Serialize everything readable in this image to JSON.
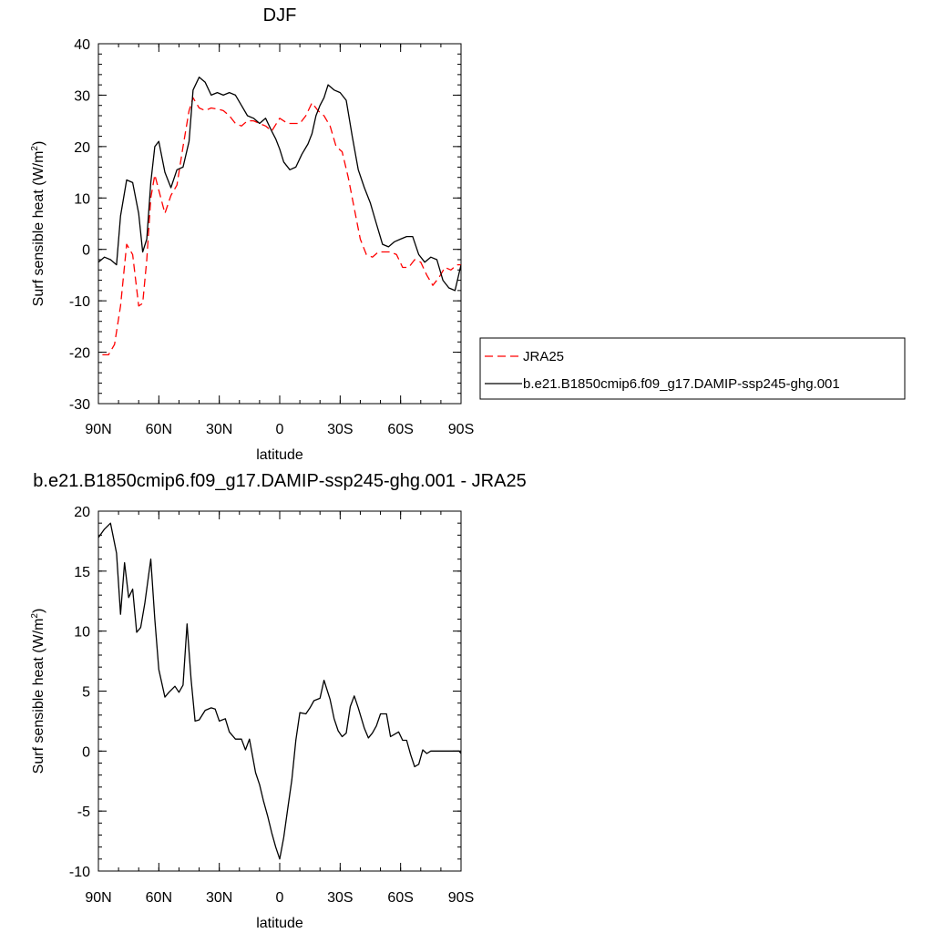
{
  "chart_data": [
    {
      "type": "line",
      "title": "DJF",
      "xlabel": "latitude",
      "ylabel": "Surf sensible heat (W/m",
      "ylabel_sup": "2",
      "ylabel_end": ")",
      "xlim": [
        -90,
        90
      ],
      "ylim": [
        -30,
        40
      ],
      "xticks": [
        -90,
        -60,
        -30,
        0,
        30,
        60,
        90
      ],
      "xtick_labels": [
        "90N",
        "60N",
        "30N",
        "0",
        "30S",
        "60S",
        "90S"
      ],
      "yticks": [
        -30,
        -20,
        -10,
        0,
        10,
        20,
        30,
        40
      ],
      "ytick_labels": [
        "-30",
        "-20",
        "-10",
        "0",
        "10",
        "20",
        "30",
        "40"
      ],
      "legend_position": "right",
      "series": [
        {
          "name": "JRA25",
          "color": "#ff0000",
          "dash": "dashed",
          "x": [
            -88,
            -85,
            -82,
            -79,
            -76,
            -73,
            -70,
            -68,
            -66,
            -64,
            -62,
            -60,
            -57,
            -54,
            -51,
            -48,
            -45,
            -43,
            -40,
            -37,
            -34,
            -31,
            -28,
            -25,
            -22,
            -19,
            -16,
            -13,
            -10,
            -7,
            -4,
            0,
            4,
            7,
            10,
            13,
            16,
            19,
            22,
            25,
            28,
            31,
            34,
            37,
            40,
            43,
            46,
            49,
            52,
            55,
            58,
            61,
            64,
            67,
            70,
            73,
            76,
            79,
            82,
            85,
            88,
            90
          ],
          "y": [
            -20.5,
            -20.5,
            -18.5,
            -11,
            1,
            -1,
            -11,
            -10.5,
            -2,
            10,
            14.5,
            11.5,
            7,
            10.5,
            12.5,
            20,
            27,
            29.5,
            27.5,
            27,
            27.5,
            27.3,
            27,
            26,
            24.5,
            24,
            25,
            25,
            24.5,
            24,
            23,
            25.5,
            24.5,
            24.5,
            24.5,
            26,
            28.5,
            27,
            26,
            24,
            20,
            19,
            14,
            8,
            2,
            -1,
            -1.5,
            -0.5,
            -0.5,
            -0.5,
            -1,
            -3.5,
            -3.5,
            -2,
            -2.5,
            -5,
            -7,
            -5.5,
            -3.5,
            -4,
            -3,
            -3
          ]
        },
        {
          "name": "b.e21.B1850cmip6.f09_g17.DAMIP-ssp245-ghg.001",
          "color": "#000000",
          "dash": "solid",
          "x": [
            -90,
            -87,
            -84,
            -81,
            -79,
            -76,
            -73,
            -70,
            -68,
            -66,
            -64,
            -62,
            -60,
            -57,
            -54,
            -51,
            -48,
            -45,
            -43,
            -40,
            -37,
            -34,
            -31,
            -28,
            -25,
            -22,
            -19,
            -16,
            -13,
            -10,
            -7,
            -4,
            -2,
            0,
            2,
            5,
            8,
            11,
            14,
            16,
            18,
            20,
            22,
            24,
            27,
            30,
            33,
            36,
            39,
            42,
            45,
            48,
            51,
            54,
            57,
            60,
            63,
            66,
            69,
            72,
            75,
            78,
            81,
            84,
            87,
            90
          ],
          "y": [
            -2.5,
            -1.5,
            -2,
            -3,
            6.5,
            13.5,
            13,
            7,
            -0.5,
            2,
            13,
            20,
            21,
            15,
            12,
            15.5,
            16,
            21,
            31,
            33.5,
            32.5,
            30,
            30.5,
            30,
            30.5,
            30,
            28,
            26,
            25.5,
            24.5,
            25.5,
            23,
            21.5,
            19.5,
            17,
            15.5,
            16,
            18.5,
            20.5,
            22.5,
            26,
            28,
            29.5,
            32,
            31,
            30.5,
            29,
            22,
            15.5,
            12,
            9,
            5,
            1,
            0.5,
            1.5,
            2,
            2.5,
            2.5,
            -1,
            -2.5,
            -1.5,
            -2,
            -6,
            -7.5,
            -8,
            -3
          ]
        }
      ]
    },
    {
      "type": "line",
      "title": "b.e21.B1850cmip6.f09_g17.DAMIP-ssp245-ghg.001 - JRA25",
      "xlabel": "latitude",
      "ylabel": "Surf sensible heat (W/m",
      "ylabel_sup": "2",
      "ylabel_end": ")",
      "xlim": [
        -90,
        90
      ],
      "ylim": [
        -10,
        20
      ],
      "xticks": [
        -90,
        -60,
        -30,
        0,
        30,
        60,
        90
      ],
      "xtick_labels": [
        "90N",
        "60N",
        "30N",
        "0",
        "30S",
        "60S",
        "90S"
      ],
      "yticks": [
        -10,
        -5,
        0,
        5,
        10,
        15,
        20
      ],
      "ytick_labels": [
        "-10",
        "-5",
        "0",
        "5",
        "10",
        "15",
        "20"
      ],
      "series": [
        {
          "color": "#000000",
          "dash": "solid",
          "x": [
            -90,
            -87,
            -84,
            -81,
            -79,
            -77,
            -75,
            -73,
            -71,
            -69,
            -67,
            -64,
            -62,
            -60,
            -57,
            -55,
            -52,
            -50,
            -48,
            -46,
            -44,
            -42,
            -40,
            -37,
            -34,
            -32,
            -30,
            -27,
            -25,
            -22,
            -19,
            -17,
            -15,
            -12,
            -10,
            -8,
            -6,
            -4,
            -2,
            0,
            2,
            4,
            6,
            8,
            10,
            13,
            15,
            17,
            20,
            22,
            25,
            27,
            29,
            31,
            33,
            35,
            37,
            39,
            42,
            44,
            46,
            48,
            50,
            53,
            55,
            57,
            59,
            61,
            63,
            65,
            67,
            69,
            71,
            73,
            75,
            77,
            79,
            81,
            83,
            85,
            87,
            89,
            90
          ],
          "y": [
            17.8,
            18.5,
            19,
            16.5,
            11.4,
            15.7,
            12.8,
            13.5,
            9.9,
            10.3,
            12.3,
            16,
            11,
            6.8,
            4.5,
            4.9,
            5.4,
            4.9,
            5.5,
            10.6,
            6,
            2.5,
            2.6,
            3.4,
            3.6,
            3.5,
            2.5,
            2.7,
            1.6,
            1,
            1,
            0.1,
            1,
            -1.8,
            -2.8,
            -4.2,
            -5.4,
            -6.8,
            -8,
            -9,
            -7.2,
            -4.8,
            -2.4,
            0.9,
            3.2,
            3.1,
            3.6,
            4.2,
            4.4,
            5.9,
            4.3,
            2.7,
            1.7,
            1.2,
            1.5,
            3.7,
            4.6,
            3.6,
            1.9,
            1.1,
            1.5,
            2.1,
            3.1,
            3.1,
            1.2,
            1.4,
            1.6,
            0.9,
            0.9,
            -0.3,
            -1.3,
            -1.1,
            0.1,
            -0.2,
            0,
            0,
            0,
            0,
            0,
            0,
            0,
            0,
            -0.2
          ]
        }
      ]
    }
  ]
}
